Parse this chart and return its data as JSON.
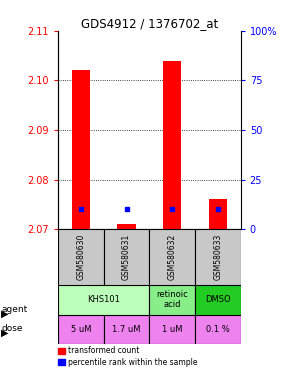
{
  "title": "GDS4912 / 1376702_at",
  "samples": [
    "GSM580630",
    "GSM580631",
    "GSM580632",
    "GSM580633"
  ],
  "red_values": [
    2.102,
    2.071,
    2.104,
    2.076
  ],
  "blue_values": [
    2.074,
    2.074,
    2.074,
    2.074
  ],
  "red_base": 2.07,
  "ylim": [
    2.07,
    2.11
  ],
  "yticks": [
    2.07,
    2.08,
    2.09,
    2.1,
    2.11
  ],
  "y2ticks": [
    0,
    25,
    50,
    75,
    100
  ],
  "y2labels": [
    "0",
    "25",
    "50",
    "75",
    "100%"
  ],
  "agent_info": [
    {
      "xrange": [
        -0.5,
        1.5
      ],
      "label": "KHS101",
      "color": "#BBFFBB"
    },
    {
      "xrange": [
        1.5,
        2.5
      ],
      "label": "retinoic\nacid",
      "color": "#88EE88"
    },
    {
      "xrange": [
        2.5,
        3.5
      ],
      "label": "DMSO",
      "color": "#22CC22"
    }
  ],
  "dose_labels": [
    "5 uM",
    "1.7 uM",
    "1 uM",
    "0.1 %"
  ],
  "dose_color": "#EE82EE",
  "sample_bg": "#C8C8C8",
  "bar_width": 0.4,
  "legend_red": "transformed count",
  "legend_blue": "percentile rank within the sample"
}
